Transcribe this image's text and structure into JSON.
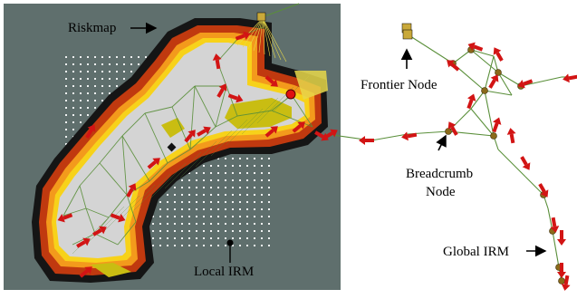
{
  "labels": {
    "riskmap": "Riskmap",
    "local_irm": "Local IRM",
    "frontier_node": "Frontier Node",
    "breadcrumb_line1": "Breadcrumb",
    "breadcrumb_line2": "Node",
    "global_irm": "Global IRM"
  },
  "colors": {
    "background_panel": "#5f6f6d",
    "free_space": "#d4d4d4",
    "risk_high": "#151515",
    "risk_mid": "#c0390f",
    "risk_low": "#f39a1c",
    "risk_edge": "#f7d21a",
    "unknown_yellow": "#c9bd12",
    "grid_dot": "#ffffff",
    "irm_edge": "#5a8f3a",
    "node": "#8a6a1a",
    "arrow": "#d21414",
    "frontier": "#c9a93a",
    "label_text": "#000000"
  }
}
